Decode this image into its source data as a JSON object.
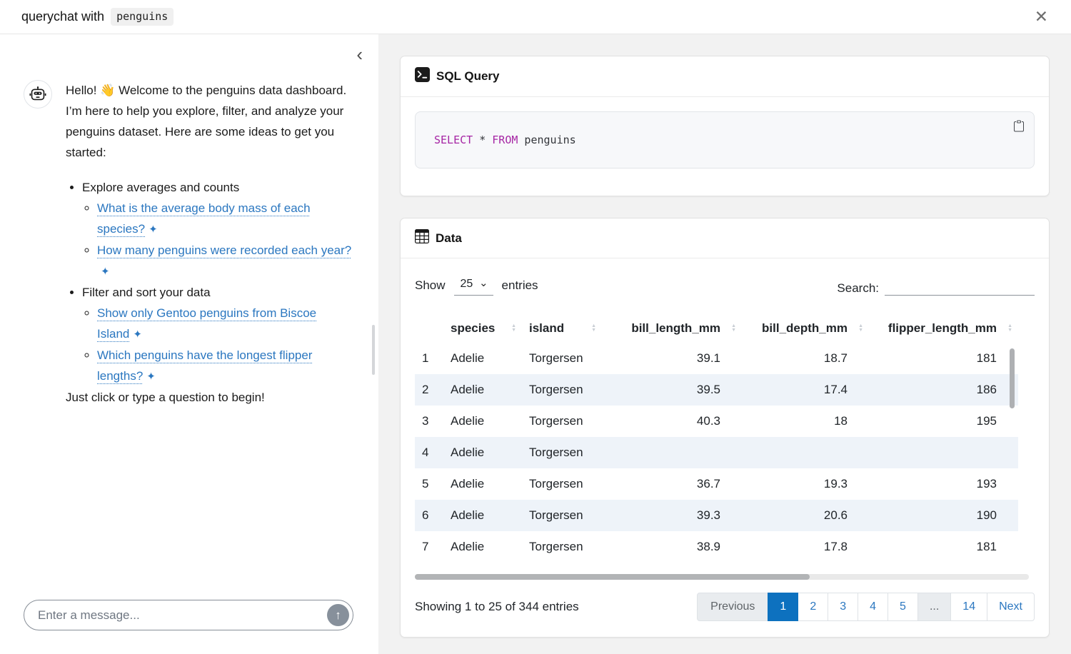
{
  "window": {
    "title_prefix": "querychat with",
    "title_code": "penguins"
  },
  "icons": {
    "close": "✕",
    "collapse": "‹",
    "send": "↑",
    "sparkle": "✦",
    "sort_asc": "▲",
    "sort_desc": "▼",
    "select_chevron": "⌄"
  },
  "chat": {
    "greeting": "Hello! 👋 Welcome to the penguins data dashboard. I’m here to help you explore, filter, and analyze your penguins dataset. Here are some ideas to get you started:",
    "topics": [
      {
        "label": "Explore averages and counts",
        "suggestions": [
          "What is the average body mass of each species?",
          "How many penguins were recorded each year?"
        ]
      },
      {
        "label": "Filter and sort your data",
        "suggestions": [
          "Show only Gentoo penguins from Biscoe Island",
          "Which penguins have the longest flipper lengths?"
        ]
      }
    ],
    "outro": "Just click or type a question to begin!",
    "input_placeholder": "Enter a message..."
  },
  "sql_card": {
    "title": "SQL Query",
    "code_tokens": [
      {
        "text": "SELECT",
        "type": "keyword"
      },
      {
        "text": " * ",
        "type": "plain"
      },
      {
        "text": "FROM",
        "type": "keyword"
      },
      {
        "text": " penguins",
        "type": "plain"
      }
    ]
  },
  "data_card": {
    "title": "Data",
    "length_control": {
      "prefix": "Show",
      "value": "25",
      "suffix": "entries"
    },
    "search": {
      "label": "Search:",
      "value": ""
    },
    "table": {
      "columns": [
        "species",
        "island",
        "bill_length_mm",
        "bill_depth_mm",
        "flipper_length_mm"
      ],
      "rows": [
        [
          "1",
          "Adelie",
          "Torgersen",
          "39.1",
          "18.7",
          "181"
        ],
        [
          "2",
          "Adelie",
          "Torgersen",
          "39.5",
          "17.4",
          "186"
        ],
        [
          "3",
          "Adelie",
          "Torgersen",
          "40.3",
          "18",
          "195"
        ],
        [
          "4",
          "Adelie",
          "Torgersen",
          "",
          "",
          ""
        ],
        [
          "5",
          "Adelie",
          "Torgersen",
          "36.7",
          "19.3",
          "193"
        ],
        [
          "6",
          "Adelie",
          "Torgersen",
          "39.3",
          "20.6",
          "190"
        ],
        [
          "7",
          "Adelie",
          "Torgersen",
          "38.9",
          "17.8",
          "181"
        ]
      ]
    },
    "info": "Showing 1 to 25 of 344 entries",
    "pagination": [
      {
        "label": "Previous",
        "state": "disabled"
      },
      {
        "label": "1",
        "state": "active"
      },
      {
        "label": "2",
        "state": "link"
      },
      {
        "label": "3",
        "state": "link"
      },
      {
        "label": "4",
        "state": "link"
      },
      {
        "label": "5",
        "state": "link"
      },
      {
        "label": "...",
        "state": "disabled"
      },
      {
        "label": "14",
        "state": "link"
      },
      {
        "label": "Next",
        "state": "link"
      }
    ]
  },
  "colors": {
    "link_blue": "#2b77c0",
    "active_page_blue": "#0d71bf",
    "sql_keyword": "#a626a4",
    "row_stripe": "#eef3f9",
    "panel_bg": "#f2f2f2"
  }
}
